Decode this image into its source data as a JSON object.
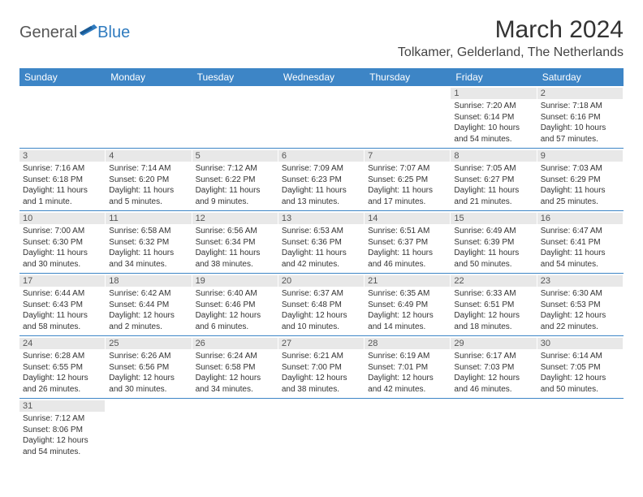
{
  "logo": {
    "general": "General",
    "blue": "Blue"
  },
  "title": "March 2024",
  "location": "Tolkamer, Gelderland, The Netherlands",
  "colors": {
    "header_bg": "#3d85c6",
    "header_text": "#ffffff",
    "daynum_bg": "#e8e8e8",
    "week_border": "#3d85c6",
    "logo_blue": "#2f7bbf"
  },
  "day_names": [
    "Sunday",
    "Monday",
    "Tuesday",
    "Wednesday",
    "Thursday",
    "Friday",
    "Saturday"
  ],
  "weeks": [
    [
      null,
      null,
      null,
      null,
      null,
      {
        "n": "1",
        "sr": "7:20 AM",
        "ss": "6:14 PM",
        "dl": "10 hours and 54 minutes."
      },
      {
        "n": "2",
        "sr": "7:18 AM",
        "ss": "6:16 PM",
        "dl": "10 hours and 57 minutes."
      }
    ],
    [
      {
        "n": "3",
        "sr": "7:16 AM",
        "ss": "6:18 PM",
        "dl": "11 hours and 1 minute."
      },
      {
        "n": "4",
        "sr": "7:14 AM",
        "ss": "6:20 PM",
        "dl": "11 hours and 5 minutes."
      },
      {
        "n": "5",
        "sr": "7:12 AM",
        "ss": "6:22 PM",
        "dl": "11 hours and 9 minutes."
      },
      {
        "n": "6",
        "sr": "7:09 AM",
        "ss": "6:23 PM",
        "dl": "11 hours and 13 minutes."
      },
      {
        "n": "7",
        "sr": "7:07 AM",
        "ss": "6:25 PM",
        "dl": "11 hours and 17 minutes."
      },
      {
        "n": "8",
        "sr": "7:05 AM",
        "ss": "6:27 PM",
        "dl": "11 hours and 21 minutes."
      },
      {
        "n": "9",
        "sr": "7:03 AM",
        "ss": "6:29 PM",
        "dl": "11 hours and 25 minutes."
      }
    ],
    [
      {
        "n": "10",
        "sr": "7:00 AM",
        "ss": "6:30 PM",
        "dl": "11 hours and 30 minutes."
      },
      {
        "n": "11",
        "sr": "6:58 AM",
        "ss": "6:32 PM",
        "dl": "11 hours and 34 minutes."
      },
      {
        "n": "12",
        "sr": "6:56 AM",
        "ss": "6:34 PM",
        "dl": "11 hours and 38 minutes."
      },
      {
        "n": "13",
        "sr": "6:53 AM",
        "ss": "6:36 PM",
        "dl": "11 hours and 42 minutes."
      },
      {
        "n": "14",
        "sr": "6:51 AM",
        "ss": "6:37 PM",
        "dl": "11 hours and 46 minutes."
      },
      {
        "n": "15",
        "sr": "6:49 AM",
        "ss": "6:39 PM",
        "dl": "11 hours and 50 minutes."
      },
      {
        "n": "16",
        "sr": "6:47 AM",
        "ss": "6:41 PM",
        "dl": "11 hours and 54 minutes."
      }
    ],
    [
      {
        "n": "17",
        "sr": "6:44 AM",
        "ss": "6:43 PM",
        "dl": "11 hours and 58 minutes."
      },
      {
        "n": "18",
        "sr": "6:42 AM",
        "ss": "6:44 PM",
        "dl": "12 hours and 2 minutes."
      },
      {
        "n": "19",
        "sr": "6:40 AM",
        "ss": "6:46 PM",
        "dl": "12 hours and 6 minutes."
      },
      {
        "n": "20",
        "sr": "6:37 AM",
        "ss": "6:48 PM",
        "dl": "12 hours and 10 minutes."
      },
      {
        "n": "21",
        "sr": "6:35 AM",
        "ss": "6:49 PM",
        "dl": "12 hours and 14 minutes."
      },
      {
        "n": "22",
        "sr": "6:33 AM",
        "ss": "6:51 PM",
        "dl": "12 hours and 18 minutes."
      },
      {
        "n": "23",
        "sr": "6:30 AM",
        "ss": "6:53 PM",
        "dl": "12 hours and 22 minutes."
      }
    ],
    [
      {
        "n": "24",
        "sr": "6:28 AM",
        "ss": "6:55 PM",
        "dl": "12 hours and 26 minutes."
      },
      {
        "n": "25",
        "sr": "6:26 AM",
        "ss": "6:56 PM",
        "dl": "12 hours and 30 minutes."
      },
      {
        "n": "26",
        "sr": "6:24 AM",
        "ss": "6:58 PM",
        "dl": "12 hours and 34 minutes."
      },
      {
        "n": "27",
        "sr": "6:21 AM",
        "ss": "7:00 PM",
        "dl": "12 hours and 38 minutes."
      },
      {
        "n": "28",
        "sr": "6:19 AM",
        "ss": "7:01 PM",
        "dl": "12 hours and 42 minutes."
      },
      {
        "n": "29",
        "sr": "6:17 AM",
        "ss": "7:03 PM",
        "dl": "12 hours and 46 minutes."
      },
      {
        "n": "30",
        "sr": "6:14 AM",
        "ss": "7:05 PM",
        "dl": "12 hours and 50 minutes."
      }
    ],
    [
      {
        "n": "31",
        "sr": "7:12 AM",
        "ss": "8:06 PM",
        "dl": "12 hours and 54 minutes."
      },
      null,
      null,
      null,
      null,
      null,
      null
    ]
  ],
  "labels": {
    "sunrise": "Sunrise:",
    "sunset": "Sunset:",
    "daylight": "Daylight:"
  }
}
